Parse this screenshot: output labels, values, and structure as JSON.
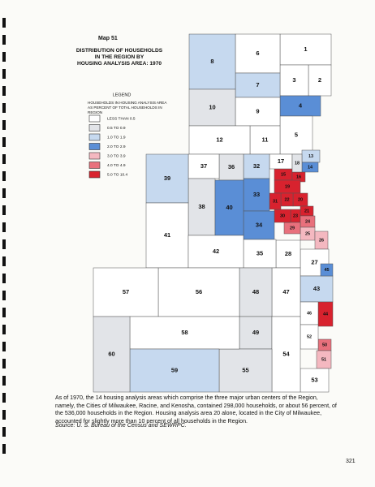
{
  "header": {
    "map_number": "Map 51",
    "title_lines": [
      "DISTRIBUTION OF HOUSEHOLDS",
      "IN THE REGION BY",
      "HOUSING ANALYSIS AREA: 1970"
    ]
  },
  "legend": {
    "title": "LEGEND",
    "subtitle_lines": [
      "HOUSEHOLDS IN HOUSING ANALYSIS AREA",
      "AS PERCENT OF TOTAL HOUSEHOLDS IN",
      "REGION"
    ],
    "entries": [
      {
        "label": "LESS THAN 0.5",
        "color": "#ffffff"
      },
      {
        "label": "0.5 TO 0.9",
        "color": "#e2e4e8"
      },
      {
        "label": "1.0 TO 1.9",
        "color": "#c6d9ef"
      },
      {
        "label": "2.0 TO 2.9",
        "color": "#5a8ed6"
      },
      {
        "label": "3.0 TO 3.9",
        "color": "#f4b8c0"
      },
      {
        "label": "4.0 TO 4.9",
        "color": "#e8707c"
      },
      {
        "label": "5.0 TO 10.4",
        "color": "#d8222e"
      }
    ]
  },
  "areas": [
    {
      "label": "1",
      "color": "#ffffff"
    },
    {
      "label": "2",
      "color": "#ffffff"
    },
    {
      "label": "3",
      "color": "#ffffff"
    },
    {
      "label": "4",
      "color": "#5a8ed6"
    },
    {
      "label": "5",
      "color": "#ffffff"
    },
    {
      "label": "6",
      "color": "#ffffff"
    },
    {
      "label": "7",
      "color": "#c6d9ef"
    },
    {
      "label": "8",
      "color": "#c6d9ef"
    },
    {
      "label": "9",
      "color": "#ffffff"
    },
    {
      "label": "10",
      "color": "#e2e4e8"
    },
    {
      "label": "11",
      "color": "#ffffff"
    },
    {
      "label": "12",
      "color": "#ffffff"
    },
    {
      "label": "13",
      "color": "#c6d9ef"
    },
    {
      "label": "14",
      "color": "#5a8ed6"
    },
    {
      "label": "15",
      "color": "#d8222e"
    },
    {
      "label": "16",
      "color": "#d8222e"
    },
    {
      "label": "17",
      "color": "#ffffff"
    },
    {
      "label": "18",
      "color": "#e2e4e8"
    },
    {
      "label": "19",
      "color": "#d8222e"
    },
    {
      "label": "20",
      "color": "#d8222e"
    },
    {
      "label": "21",
      "color": "#d8222e"
    },
    {
      "label": "22",
      "color": "#d8222e"
    },
    {
      "label": "23",
      "color": "#d8222e"
    },
    {
      "label": "24",
      "color": "#e8707c"
    },
    {
      "label": "25",
      "color": "#f4b8c0"
    },
    {
      "label": "26",
      "color": "#f4b8c0"
    },
    {
      "label": "27",
      "color": "#ffffff"
    },
    {
      "label": "28",
      "color": "#ffffff"
    },
    {
      "label": "29",
      "color": "#e8707c"
    },
    {
      "label": "30",
      "color": "#d8222e"
    },
    {
      "label": "31",
      "color": "#d8222e"
    },
    {
      "label": "32",
      "color": "#c6d9ef"
    },
    {
      "label": "33",
      "color": "#5a8ed6"
    },
    {
      "label": "34",
      "color": "#5a8ed6"
    },
    {
      "label": "35",
      "color": "#ffffff"
    },
    {
      "label": "36",
      "color": "#e2e4e8"
    },
    {
      "label": "37",
      "color": "#ffffff"
    },
    {
      "label": "38",
      "color": "#e2e4e8"
    },
    {
      "label": "39",
      "color": "#c6d9ef"
    },
    {
      "label": "40",
      "color": "#5a8ed6"
    },
    {
      "label": "41",
      "color": "#ffffff"
    },
    {
      "label": "42",
      "color": "#ffffff"
    },
    {
      "label": "43",
      "color": "#c6d9ef"
    },
    {
      "label": "44",
      "color": "#d8222e"
    },
    {
      "label": "45",
      "color": "#5a8ed6"
    },
    {
      "label": "46",
      "color": "#ffffff"
    },
    {
      "label": "47",
      "color": "#ffffff"
    },
    {
      "label": "48",
      "color": "#e2e4e8"
    },
    {
      "label": "49",
      "color": "#e2e4e8"
    },
    {
      "label": "50",
      "color": "#e8707c"
    },
    {
      "label": "51",
      "color": "#f4b8c0"
    },
    {
      "label": "52",
      "color": "#ffffff"
    },
    {
      "label": "53",
      "color": "#ffffff"
    },
    {
      "label": "54",
      "color": "#ffffff"
    },
    {
      "label": "55",
      "color": "#e2e4e8"
    },
    {
      "label": "56",
      "color": "#ffffff"
    },
    {
      "label": "57",
      "color": "#ffffff"
    },
    {
      "label": "58",
      "color": "#ffffff"
    },
    {
      "label": "59",
      "color": "#c6d9ef"
    },
    {
      "label": "60",
      "color": "#e2e4e8"
    }
  ],
  "caption": "As of 1970, the 14 housing analysis areas which comprise the three major urban centers of the Region, namely, the Cities of Milwaukee, Racine, and Kenosha, contained 298,000 households, or about 56 percent, of the 536,000 households in the Region. Housing analysis area 20 alone, located in the City of Milwaukee, accounted for slightly more than 10 percent of all households in the Region.",
  "source": "Source:  U. S. Bureau of the Census and SEWRPC.",
  "page_number": "321"
}
